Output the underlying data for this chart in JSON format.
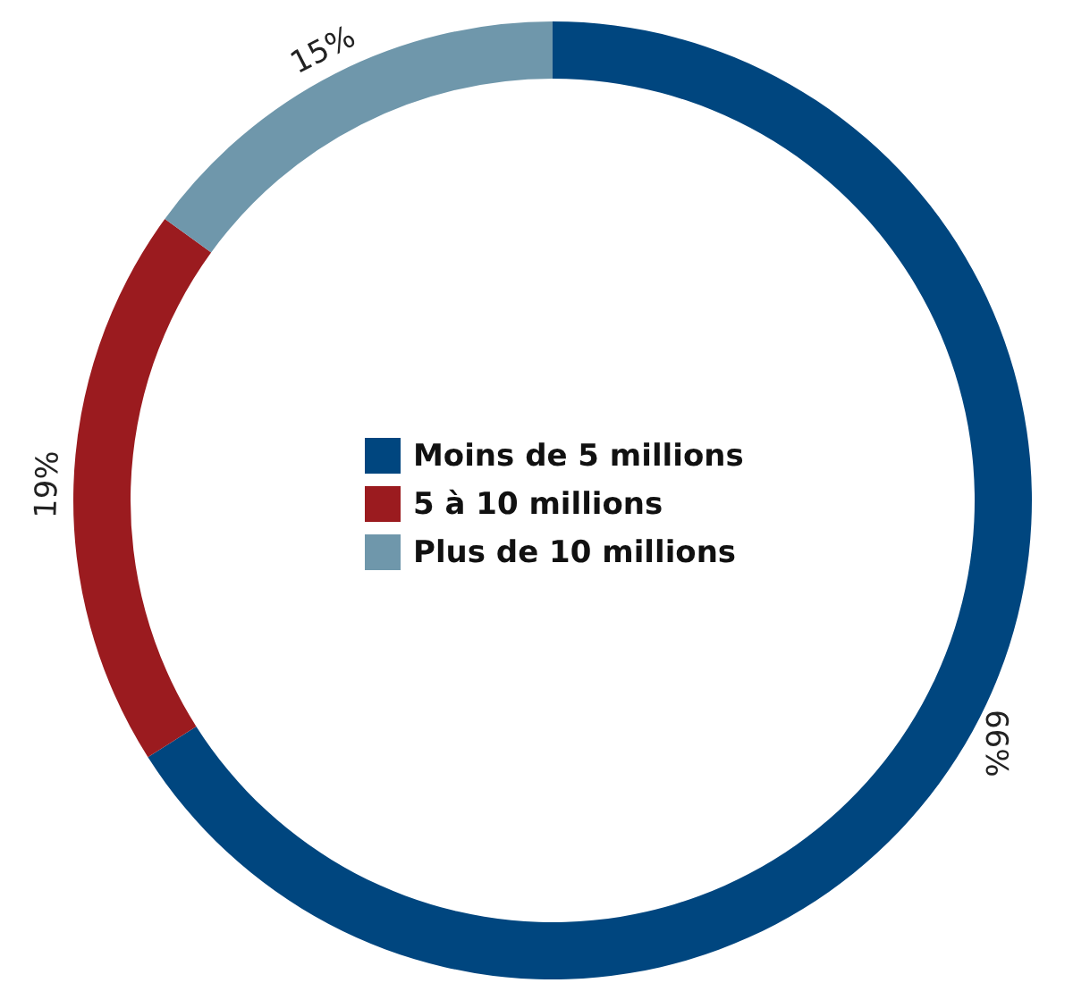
{
  "chart_data": {
    "type": "donut",
    "categories": [
      "Moins de 5 millions",
      "5 à 10 millions",
      "Plus de 10 millions"
    ],
    "values": [
      66,
      19,
      15
    ],
    "value_labels": [
      "66%",
      "19%",
      "15%"
    ],
    "colors": [
      "#00467f",
      "#9b1b1f",
      "#6f97ab"
    ],
    "legend": "center"
  }
}
